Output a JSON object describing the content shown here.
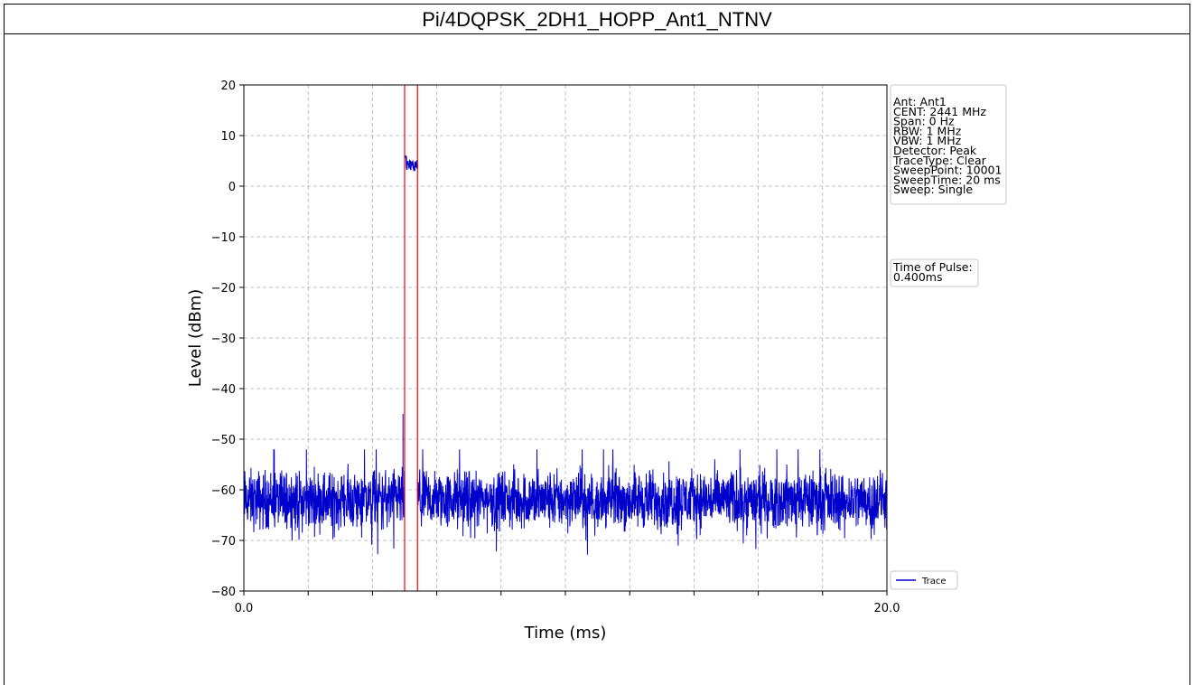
{
  "header": {
    "title": "Pi/4DQPSK_2DH1_HOPP_Ant1_NTNV"
  },
  "chart_data": {
    "type": "line",
    "title": "Pi/4DQPSK_2DH1_HOPP_Ant1_NTNV",
    "xlabel": "Time (ms)",
    "ylabel": "Level (dBm)",
    "xlim": [
      0.0,
      20.0
    ],
    "ylim": [
      -80,
      20
    ],
    "x_tick_labels": [
      "0.0",
      "20.0"
    ],
    "x_minor_ticks": [
      2,
      4,
      6,
      8,
      10,
      12,
      14,
      16,
      18
    ],
    "y_ticks": [
      20,
      10,
      0,
      -10,
      -20,
      -30,
      -40,
      -50,
      -60,
      -70,
      -80
    ],
    "y_tick_labels": [
      "20",
      "10",
      "0",
      "−10",
      "−20",
      "−30",
      "−40",
      "−50",
      "−60",
      "−70",
      "−80"
    ],
    "grid": true,
    "markers": [
      {
        "x": 5.0,
        "color": "#ff0000"
      },
      {
        "x": 5.4,
        "color": "#ff0000"
      }
    ],
    "series": [
      {
        "name": "Trace",
        "color": "#0000cc",
        "points": 10001,
        "noise_floor_dbm": -62,
        "noise_range_dbm": [
          -73,
          -52
        ],
        "pulse": {
          "start_ms": 5.0,
          "end_ms": 5.4,
          "level_dbm": [
            3,
            6
          ]
        },
        "spike": {
          "x": 4.95,
          "y": -45
        }
      }
    ],
    "legend": {
      "position": "bottom-right",
      "entries": [
        "Trace"
      ]
    },
    "info_box": {
      "lines": [
        "Ant: Ant1",
        "CENT: 2441 MHz",
        "Span: 0 Hz",
        "RBW: 1 MHz",
        "VBW: 1 MHz",
        "Detector: Peak",
        "TraceType: Clear",
        "SweepPoint: 10001",
        "SweepTime: 20 ms",
        "Sweep: Single"
      ]
    },
    "pulse_box": {
      "lines": [
        "Time of Pulse:",
        " 0.400ms"
      ]
    }
  }
}
